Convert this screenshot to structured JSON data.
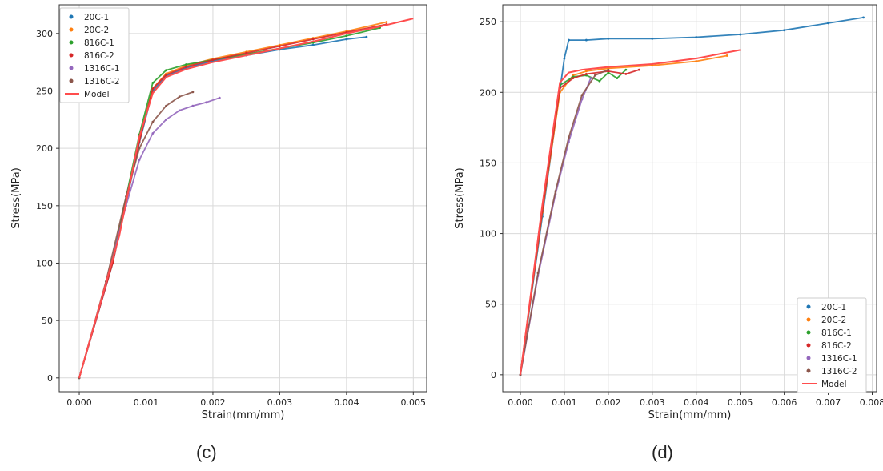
{
  "figure": {
    "captions": [
      "(c)",
      "(d)"
    ]
  },
  "colors": {
    "20C-1": "#1f77b4",
    "20C-2": "#ff7f0e",
    "816C-1": "#2ca02c",
    "816C-2": "#d62728",
    "1316C-1": "#9467bd",
    "1316C-2": "#8c564b",
    "Model": "#ff4d4d"
  },
  "chart_data": [
    {
      "type": "line",
      "panel": "(c)",
      "title": "",
      "xlabel": "Strain(mm/mm)",
      "ylabel": "Stress(MPa)",
      "xlim": [
        -0.0003,
        0.0052
      ],
      "ylim": [
        -12,
        325
      ],
      "xticks": [
        0.0,
        0.001,
        0.002,
        0.003,
        0.004,
        0.005
      ],
      "xtick_labels": [
        "0.000",
        "0.001",
        "0.002",
        "0.003",
        "0.004",
        "0.005"
      ],
      "yticks": [
        0,
        50,
        100,
        150,
        200,
        250,
        300
      ],
      "ytick_labels": [
        "0",
        "50",
        "100",
        "150",
        "200",
        "250",
        "300"
      ],
      "grid": true,
      "legend": "top-left",
      "series": [
        {
          "name": "20C-1",
          "marker": "dot",
          "x": [
            0,
            0.0005,
            0.0009,
            0.0011,
            0.0013,
            0.0016,
            0.002,
            0.0025,
            0.003,
            0.0035,
            0.004,
            0.0043
          ],
          "y": [
            0,
            100,
            205,
            250,
            263,
            270,
            276,
            281,
            286,
            290,
            295,
            297
          ]
        },
        {
          "name": "20C-2",
          "marker": "dot",
          "x": [
            0,
            0.0005,
            0.0009,
            0.0011,
            0.0013,
            0.0016,
            0.002,
            0.0025,
            0.003,
            0.0035,
            0.004,
            0.0046
          ],
          "y": [
            0,
            101,
            208,
            252,
            265,
            272,
            278,
            284,
            290,
            296,
            302,
            310
          ]
        },
        {
          "name": "816C-1",
          "marker": "dot",
          "x": [
            0,
            0.0005,
            0.0009,
            0.0011,
            0.0013,
            0.0016,
            0.002,
            0.0025,
            0.003,
            0.0035,
            0.004,
            0.0045
          ],
          "y": [
            0,
            102,
            212,
            257,
            268,
            273,
            277,
            282,
            287,
            292,
            298,
            305
          ]
        },
        {
          "name": "816C-2",
          "marker": "dot",
          "x": [
            0,
            0.0005,
            0.0009,
            0.0011,
            0.0013,
            0.0016,
            0.002,
            0.0025,
            0.003,
            0.0035,
            0.004,
            0.0046
          ],
          "y": [
            0,
            100,
            206,
            252,
            264,
            271,
            277,
            283,
            289,
            295,
            301,
            308
          ]
        },
        {
          "name": "1316C-1",
          "marker": "dot",
          "x": [
            0,
            0.0004,
            0.0007,
            0.0009,
            0.0011,
            0.0013,
            0.0015,
            0.0017,
            0.0019,
            0.0021
          ],
          "y": [
            0,
            82,
            150,
            190,
            213,
            225,
            233,
            237,
            240,
            244
          ]
        },
        {
          "name": "1316C-2",
          "marker": "dot",
          "x": [
            0,
            0.0004,
            0.0007,
            0.0009,
            0.0011,
            0.0013,
            0.0015,
            0.0017
          ],
          "y": [
            0,
            84,
            158,
            200,
            223,
            237,
            245,
            249
          ]
        },
        {
          "name": "Model",
          "marker": "line",
          "x": [
            0,
            0.0003,
            0.0006,
            0.0009,
            0.0011,
            0.0013,
            0.0016,
            0.002,
            0.0025,
            0.003,
            0.0035,
            0.004,
            0.0045,
            0.005
          ],
          "y": [
            0,
            62,
            124,
            210,
            248,
            262,
            269,
            275,
            281,
            287,
            293,
            300,
            306,
            313
          ]
        }
      ]
    },
    {
      "type": "line",
      "panel": "(d)",
      "title": "",
      "xlabel": "Strain(mm/mm)",
      "ylabel": "Stress(MPa)",
      "xlim": [
        -0.0004,
        0.0081
      ],
      "ylim": [
        -12,
        262
      ],
      "xticks": [
        0.0,
        0.001,
        0.002,
        0.003,
        0.004,
        0.005,
        0.006,
        0.007,
        0.008
      ],
      "xtick_labels": [
        "0.000",
        "0.001",
        "0.002",
        "0.003",
        "0.004",
        "0.005",
        "0.006",
        "0.007",
        "0.008"
      ],
      "yticks": [
        0,
        50,
        100,
        150,
        200,
        250
      ],
      "ytick_labels": [
        "0",
        "50",
        "100",
        "150",
        "200",
        "250"
      ],
      "grid": true,
      "legend": "bottom-right",
      "series": [
        {
          "name": "20C-1",
          "marker": "dot",
          "x": [
            0,
            0.0005,
            0.001,
            0.0011,
            0.0015,
            0.002,
            0.003,
            0.004,
            0.005,
            0.006,
            0.007,
            0.0078
          ],
          "y": [
            0,
            112,
            224,
            237,
            237,
            238,
            238,
            239,
            241,
            244,
            249,
            253
          ]
        },
        {
          "name": "20C-2",
          "marker": "dot",
          "x": [
            0,
            0.0005,
            0.0009,
            0.0012,
            0.0015,
            0.002,
            0.003,
            0.004,
            0.0047
          ],
          "y": [
            0,
            115,
            200,
            212,
            215,
            217,
            219,
            222,
            226
          ]
        },
        {
          "name": "816C-1",
          "marker": "dot",
          "x": [
            0,
            0.0005,
            0.0009,
            0.0012,
            0.0015,
            0.0018,
            0.002,
            0.0022,
            0.0024
          ],
          "y": [
            0,
            118,
            205,
            211,
            212,
            208,
            214,
            210,
            216
          ]
        },
        {
          "name": "816C-2",
          "marker": "dot",
          "x": [
            0,
            0.0005,
            0.0009,
            0.0012,
            0.0015,
            0.002,
            0.0024,
            0.0027
          ],
          "y": [
            0,
            116,
            203,
            210,
            213,
            215,
            213,
            216
          ]
        },
        {
          "name": "1316C-1",
          "marker": "dot",
          "x": [
            0,
            0.0004,
            0.0008,
            0.0011,
            0.0014,
            0.0016
          ],
          "y": [
            0,
            70,
            128,
            165,
            195,
            210
          ]
        },
        {
          "name": "1316C-2",
          "marker": "dot",
          "x": [
            0,
            0.0004,
            0.0008,
            0.0011,
            0.0014,
            0.0017,
            0.002
          ],
          "y": [
            0,
            72,
            130,
            168,
            198,
            212,
            216
          ]
        },
        {
          "name": "Model",
          "marker": "line",
          "x": [
            0,
            0.0005,
            0.0009,
            0.0011,
            0.0014,
            0.002,
            0.003,
            0.004,
            0.005
          ],
          "y": [
            0,
            120,
            207,
            214,
            216,
            218,
            220,
            224,
            230
          ]
        }
      ]
    }
  ]
}
